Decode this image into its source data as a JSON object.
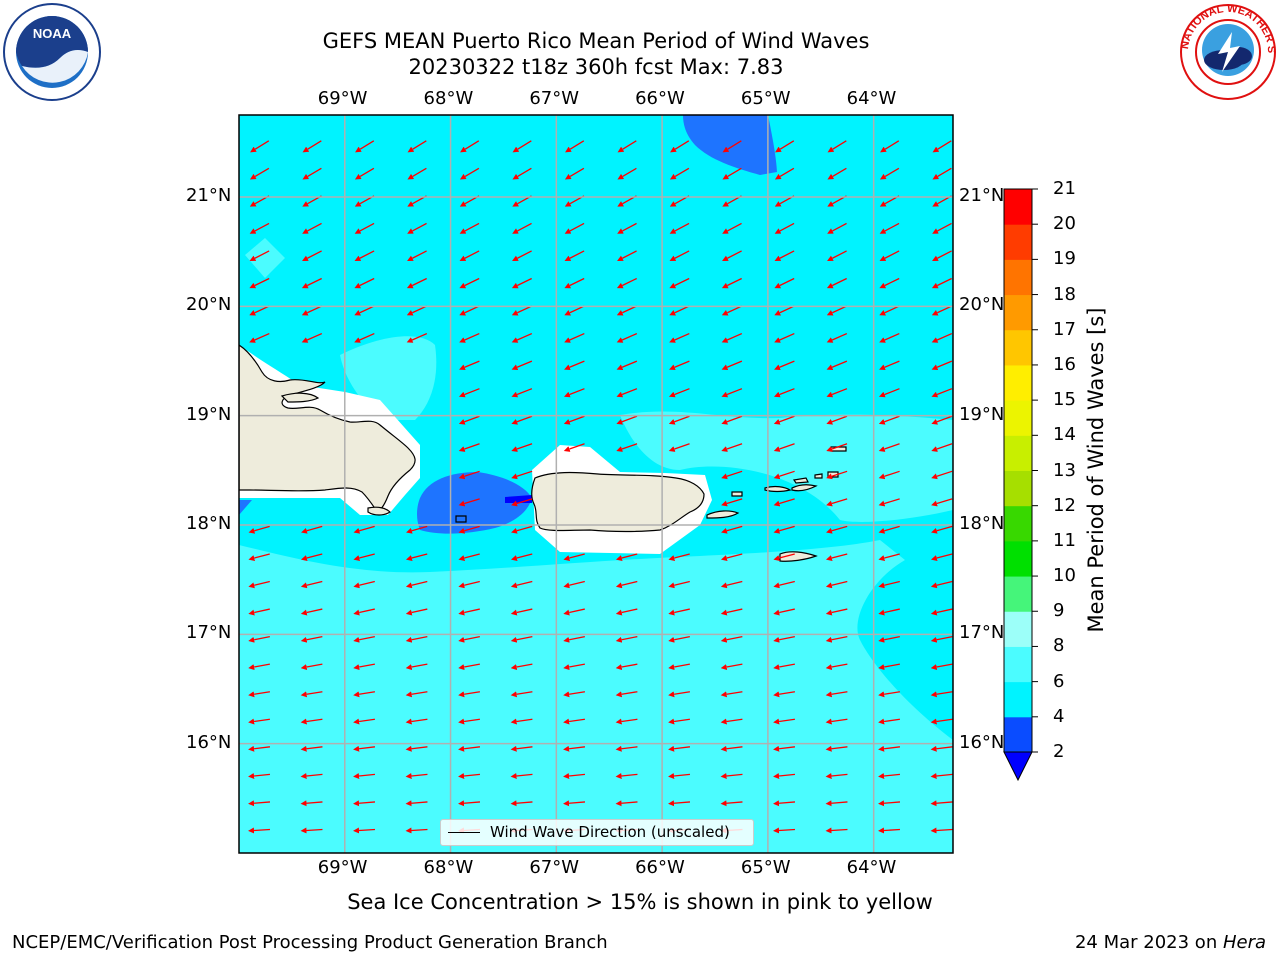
{
  "title": {
    "line1": "GEFS MEAN Puerto Rico Mean Period of Wind Waves",
    "line2": "20230322 t18z 360h fcst   Max: 7.83"
  },
  "axes": {
    "lon_labels": [
      "69°W",
      "68°W",
      "67°W",
      "66°W",
      "65°W",
      "64°W"
    ],
    "lat_labels": [
      "21°N",
      "20°N",
      "19°N",
      "18°N",
      "17°N",
      "16°N"
    ],
    "lon_range": [
      -70.0,
      -63.25
    ],
    "lat_range": [
      15.0,
      21.75
    ]
  },
  "colorbar": {
    "title": "Mean Period of Wind Waves [s]",
    "levels": [
      2,
      4,
      6,
      8,
      9,
      10,
      11,
      12,
      13,
      14,
      15,
      16,
      17,
      18,
      19,
      20,
      21
    ],
    "colors": [
      "#0a4cff",
      "#00f3ff",
      "#4bfcff",
      "#9cfff9",
      "#45f57a",
      "#00e000",
      "#38d800",
      "#a6df00",
      "#c8ef00",
      "#ecf400",
      "#ffee00",
      "#ffc600",
      "#ff9a00",
      "#ff7400",
      "#ff3c00",
      "#ff0000"
    ],
    "under_color": "#0000ff"
  },
  "field": {
    "background_color": "#00f3ff",
    "band_color": "#4bfcff",
    "low_color": "#1e74ff",
    "land_color": "#eeecdc",
    "arrow_color": "#ff0000"
  },
  "legend": {
    "label": "Wind Wave Direction (unscaled)"
  },
  "ice_note": "Sea Ice Concentration > 15% is shown in pink to yellow",
  "footer": {
    "left": "NCEP/EMC/Verification Post Processing Product Generation Branch",
    "date": "24 Mar 2023 on ",
    "host": "Hera"
  },
  "logos": {
    "left": "NOAA",
    "right": "NATIONAL WEATHER SERVICE"
  }
}
